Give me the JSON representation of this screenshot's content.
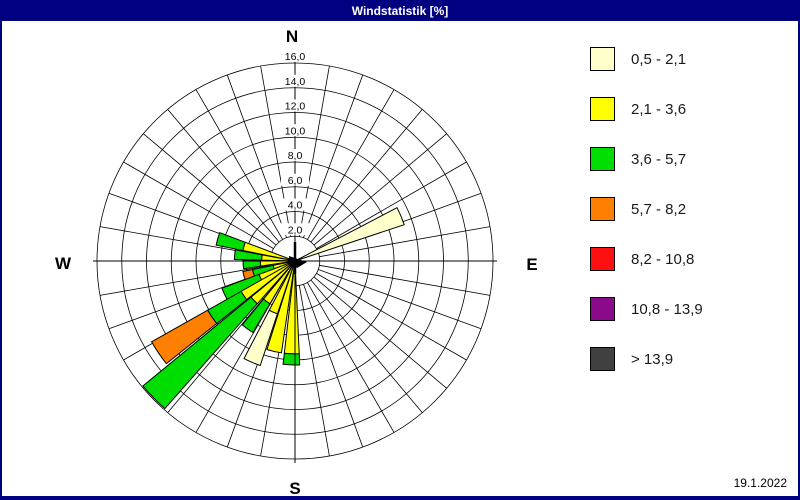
{
  "window": {
    "title": "Windstatistik [%]",
    "date": "19.1.2022"
  },
  "colors": {
    "frame": "#000080",
    "background": "#FFFFFF",
    "grid": "#000000"
  },
  "chart_data": {
    "type": "wind_rose",
    "title": "Windstatistik [%]",
    "units": "%",
    "compass": {
      "north": "N",
      "east": "E",
      "south": "S",
      "west": "W"
    },
    "rings": {
      "step": 2.0,
      "max": 16.0,
      "labels": [
        "2,0",
        "4,0",
        "6,0",
        "8,0",
        "10,0",
        "12,0",
        "14,0",
        "16,0"
      ]
    },
    "spoke_interval_deg": 10,
    "legend_title": null,
    "speed_classes": [
      {
        "label": "0,5 - 2,1",
        "color": "#FFFFCC"
      },
      {
        "label": "2,1 - 3,6",
        "color": "#FFFF00"
      },
      {
        "label": "3,6 - 5,7",
        "color": "#00DD00"
      },
      {
        "label": "5,7 - 8,2",
        "color": "#FF8000"
      },
      {
        "label": "8,2 - 10,8",
        "color": "#FF1010"
      },
      {
        "label": "10,8 - 13,9",
        "color": "#8A0A8A"
      },
      {
        "label": "> 13,9",
        "color": "#404040"
      }
    ],
    "petals": [
      {
        "dir_deg": 67,
        "segments": [
          {
            "class": 0,
            "from": 0,
            "to": 9.3
          }
        ]
      },
      {
        "dir_deg": 286,
        "segments": [
          {
            "class": 1,
            "from": 0,
            "to": 4.3
          },
          {
            "class": 2,
            "from": 4.3,
            "to": 6.5
          }
        ]
      },
      {
        "dir_deg": 276,
        "segments": [
          {
            "class": 1,
            "from": 0,
            "to": 2.7
          },
          {
            "class": 2,
            "from": 2.7,
            "to": 4.9
          }
        ]
      },
      {
        "dir_deg": 266,
        "segments": [
          {
            "class": 1,
            "from": 0,
            "to": 2.8
          },
          {
            "class": 2,
            "from": 2.8,
            "to": 4.2
          }
        ]
      },
      {
        "dir_deg": 254,
        "segments": [
          {
            "class": 1,
            "from": 0,
            "to": 1.8
          },
          {
            "class": 2,
            "from": 1.8,
            "to": 3.5
          },
          {
            "class": 3,
            "from": 3.5,
            "to": 4.3
          }
        ]
      },
      {
        "dir_deg": 245,
        "segments": [
          {
            "class": 1,
            "from": 0,
            "to": 3.1
          },
          {
            "class": 2,
            "from": 3.1,
            "to": 6.3
          }
        ]
      },
      {
        "dir_deg": 236,
        "segments": [
          {
            "class": 1,
            "from": 0,
            "to": 5.0
          },
          {
            "class": 2,
            "from": 5.0,
            "to": 8.1
          },
          {
            "class": 3,
            "from": 8.1,
            "to": 13.3
          }
        ]
      },
      {
        "dir_deg": 226,
        "segments": [
          {
            "class": 1,
            "from": 0,
            "to": 4.6
          },
          {
            "class": 2,
            "from": 4.6,
            "to": 15.9
          }
        ]
      },
      {
        "dir_deg": 215,
        "segments": [
          {
            "class": 1,
            "from": 0,
            "to": 4.0
          },
          {
            "class": 2,
            "from": 4.0,
            "to": 6.7
          }
        ]
      },
      {
        "dir_deg": 203,
        "segments": [
          {
            "class": 1,
            "from": 0,
            "to": 4.5
          },
          {
            "class": 0,
            "from": 4.5,
            "to": 8.9
          }
        ]
      },
      {
        "dir_deg": 193,
        "segments": [
          {
            "class": 1,
            "from": 0,
            "to": 7.5
          }
        ]
      },
      {
        "dir_deg": 182,
        "segments": [
          {
            "class": 1,
            "from": 0,
            "to": 7.5
          },
          {
            "class": 2,
            "from": 7.5,
            "to": 8.4
          }
        ]
      }
    ]
  }
}
